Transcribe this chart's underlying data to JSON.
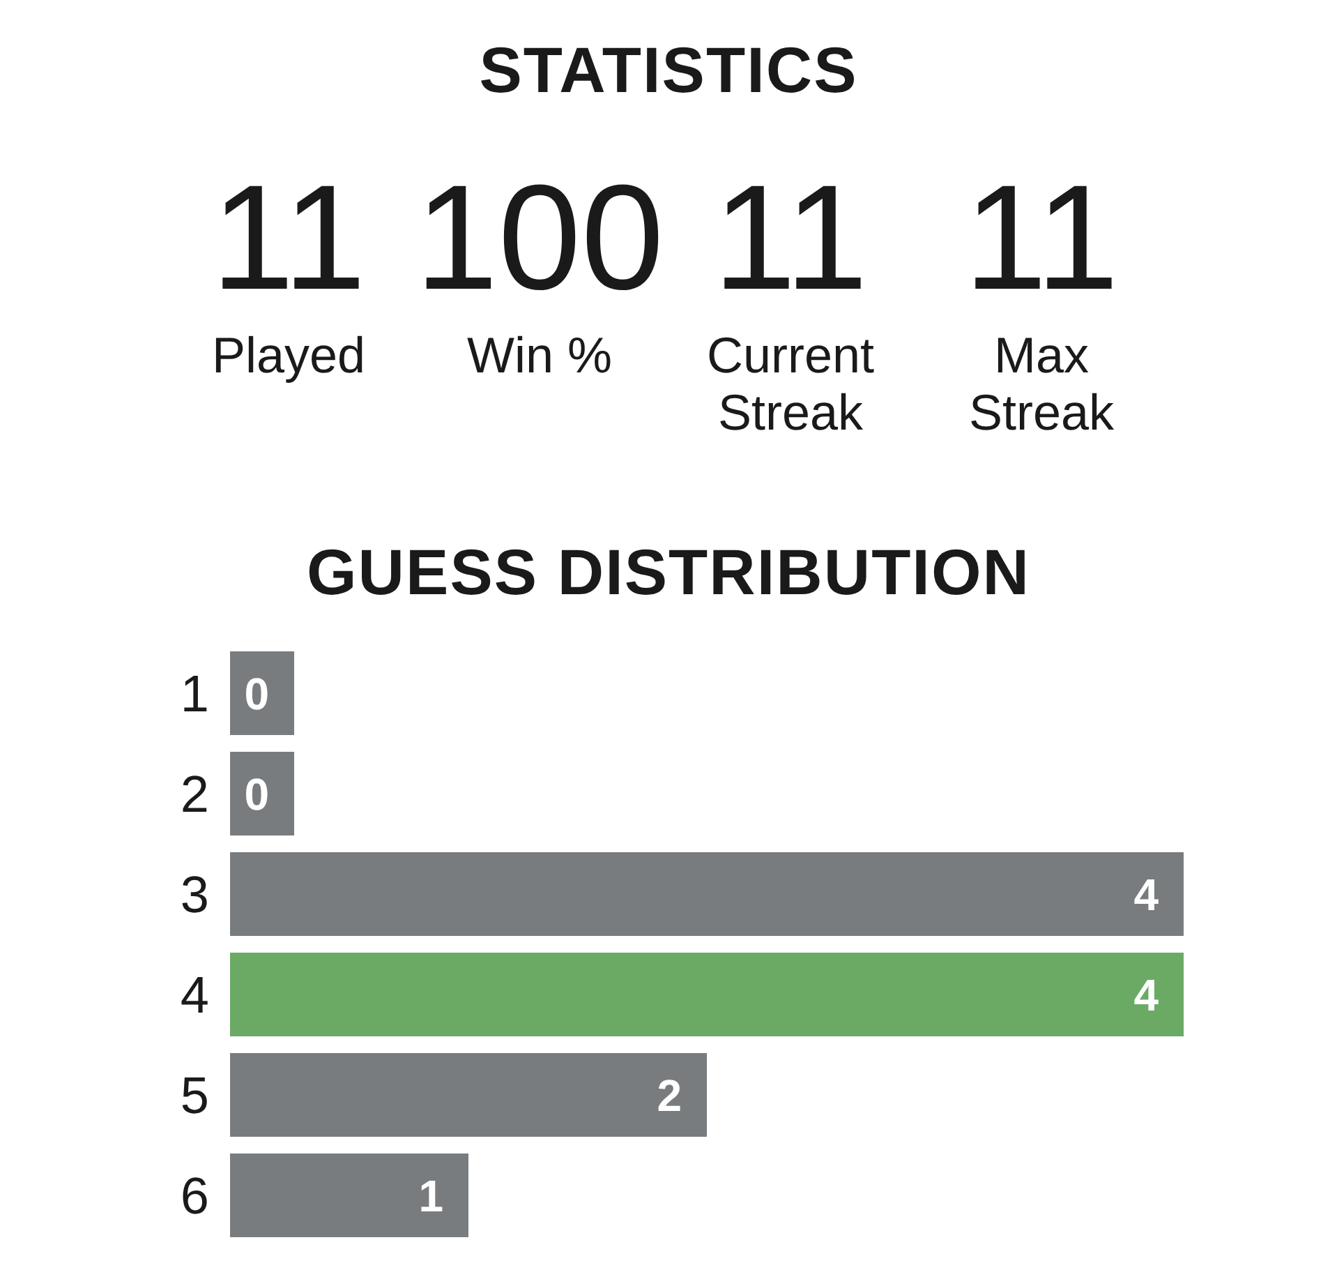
{
  "chart_data": [
    {
      "type": "other",
      "title": "STATISTICS",
      "categories": [
        "Played",
        "Win %",
        "Current Streak",
        "Max Streak"
      ],
      "values": [
        11,
        100,
        11,
        11
      ],
      "data_labels": true
    },
    {
      "type": "bar",
      "title": "GUESS DISTRIBUTION",
      "orientation": "horizontal",
      "categories": [
        "1",
        "2",
        "3",
        "4",
        "5",
        "6"
      ],
      "values": [
        0,
        0,
        4,
        4,
        2,
        1
      ],
      "colors": [
        "#787c7e",
        "#787c7e",
        "#787c7e",
        "#6aaa64",
        "#787c7e",
        "#787c7e"
      ],
      "data_labels": true,
      "tick_labels": "y"
    }
  ]
}
